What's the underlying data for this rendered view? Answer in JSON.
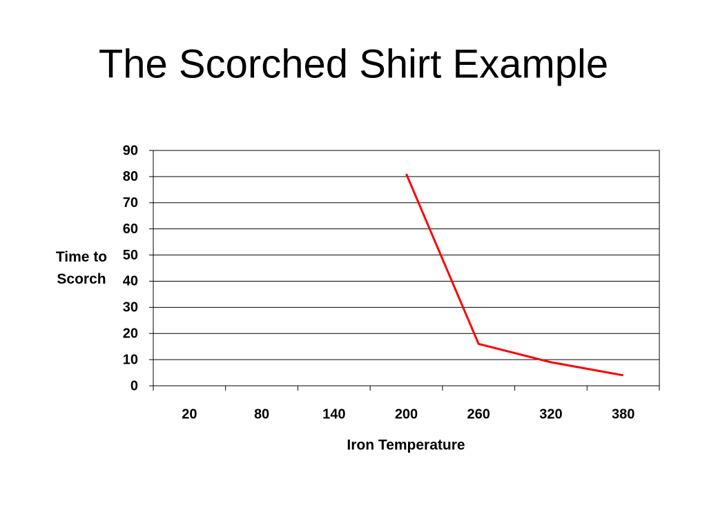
{
  "chart_data": {
    "type": "line",
    "title": "The Scorched Shirt Example",
    "xlabel": "Iron Temperature",
    "ylabel": "Time to Scorch",
    "categories": [
      "20",
      "80",
      "140",
      "200",
      "260",
      "320",
      "380"
    ],
    "values": [
      null,
      null,
      null,
      81,
      16,
      9,
      4
    ],
    "color": "#ff0000",
    "ylim": [
      0,
      90
    ],
    "yticks": [
      0,
      10,
      20,
      30,
      40,
      50,
      60,
      70,
      80,
      90
    ],
    "grid": true
  }
}
